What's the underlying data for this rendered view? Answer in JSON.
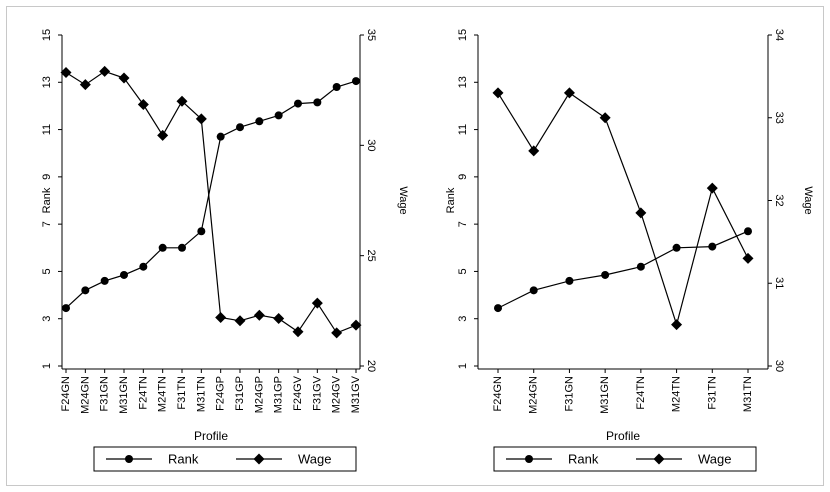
{
  "chart_data": [
    {
      "type": "line",
      "xlabel": "Profile",
      "ylabel_left": "Rank",
      "ylabel_right": "Wage",
      "categories": [
        "F24GN",
        "M24GN",
        "F31GN",
        "M31GN",
        "F24TN",
        "M24TN",
        "F31TN",
        "M31TN",
        "F24GP",
        "F31GP",
        "M24GP",
        "M31GP",
        "F24GV",
        "F31GV",
        "M24GV",
        "M31GV"
      ],
      "ylim_left": [
        1,
        15
      ],
      "yticks_left": [
        "1",
        "3",
        "5",
        "7",
        "9",
        "11",
        "13",
        "15"
      ],
      "ylim_right": [
        20,
        35
      ],
      "yticks_right": [
        "20",
        "25",
        "30",
        "35"
      ],
      "series": [
        {
          "name": "Rank",
          "axis": "left",
          "marker": "circle",
          "values": [
            3.45,
            4.2,
            4.6,
            4.85,
            5.2,
            6.0,
            6.0,
            6.7,
            10.7,
            11.1,
            11.35,
            11.6,
            12.1,
            12.15,
            12.8,
            13.05
          ]
        },
        {
          "name": "Wage",
          "axis": "right",
          "marker": "diamond",
          "values": [
            33.3,
            32.75,
            33.35,
            33.05,
            31.85,
            30.45,
            32.0,
            31.2,
            22.2,
            22.05,
            22.3,
            22.15,
            21.55,
            22.85,
            21.5,
            21.85
          ]
        }
      ],
      "legend": {
        "position": "bottom",
        "entries": [
          "Rank",
          "Wage"
        ]
      }
    },
    {
      "type": "line",
      "xlabel": "Profile",
      "ylabel_left": "Rank",
      "ylabel_right": "Wage",
      "categories": [
        "F24GN",
        "M24GN",
        "F31GN",
        "M31GN",
        "F24TN",
        "M24TN",
        "F31TN",
        "M31TN"
      ],
      "ylim_left": [
        1,
        15
      ],
      "yticks_left": [
        "1",
        "3",
        "5",
        "7",
        "9",
        "11",
        "13",
        "15"
      ],
      "ylim_right": [
        30,
        34
      ],
      "yticks_right": [
        "30",
        "31",
        "32",
        "33",
        "34"
      ],
      "series": [
        {
          "name": "Rank",
          "axis": "left",
          "marker": "circle",
          "values": [
            3.45,
            4.2,
            4.6,
            4.85,
            5.2,
            6.0,
            6.05,
            6.7
          ]
        },
        {
          "name": "Wage",
          "axis": "right",
          "marker": "diamond",
          "values": [
            33.3,
            32.6,
            33.3,
            33.0,
            31.85,
            30.5,
            32.15,
            31.3
          ]
        }
      ],
      "legend": {
        "position": "bottom",
        "entries": [
          "Rank",
          "Wage"
        ]
      }
    }
  ]
}
